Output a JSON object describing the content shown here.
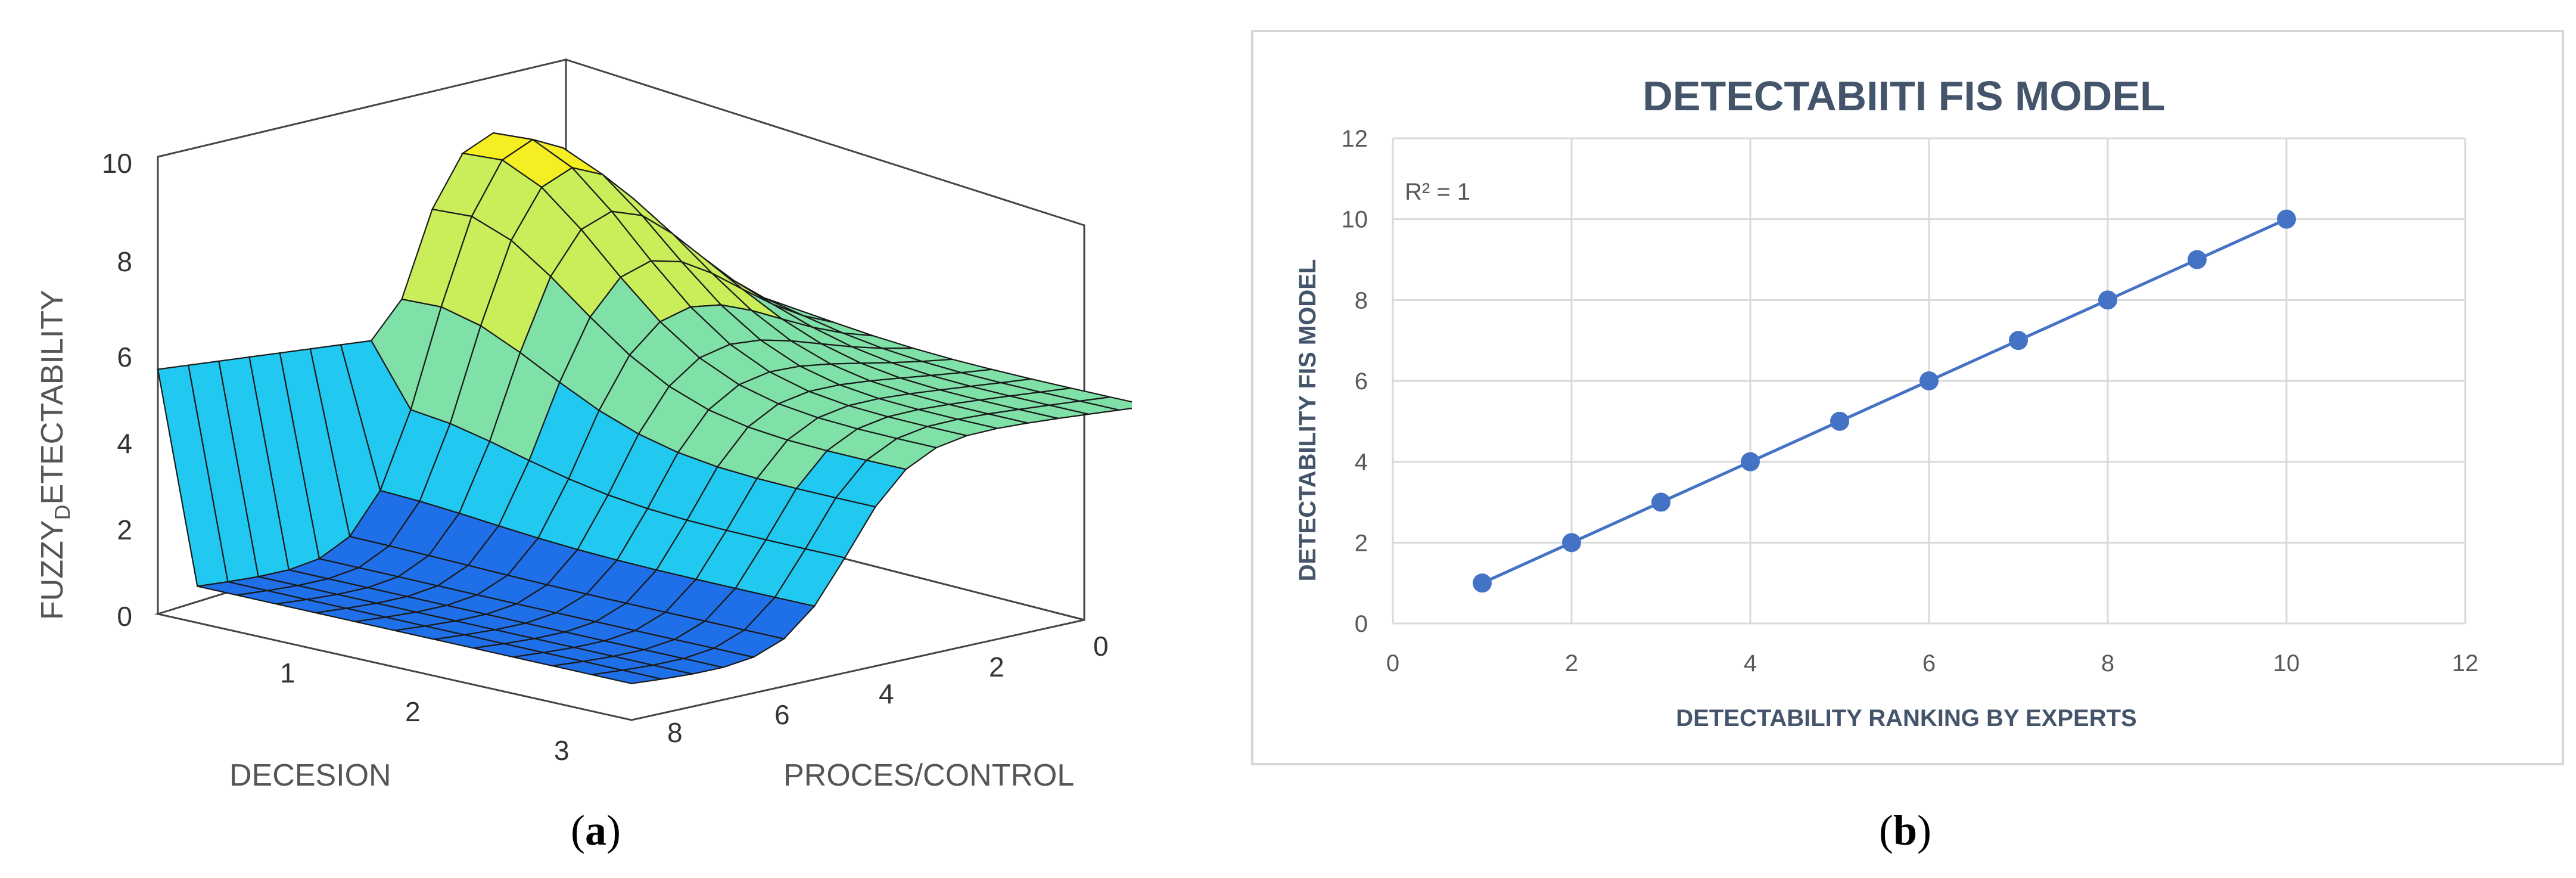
{
  "panels": {
    "a": {
      "label_prefix": "(",
      "label_letter": "a",
      "label_suffix": ")"
    },
    "b": {
      "label_prefix": "(",
      "label_letter": "b",
      "label_suffix": ")"
    }
  },
  "chart_data": [
    {
      "type": "surface",
      "title": "",
      "zlabel_main": "FUZZY",
      "zlabel_sub": "D",
      "zlabel_rest": "ETECTABILITY",
      "xlabel": "DECESION",
      "ylabel": "PROCES/CONTROL",
      "z_ticks": [
        "0",
        "2",
        "4",
        "6",
        "8",
        "10"
      ],
      "x_ticks": [
        "1",
        "2",
        "3"
      ],
      "y_ticks": [
        "8",
        "6",
        "4",
        "2",
        "0"
      ],
      "xlim": [
        0,
        3
      ],
      "ylim": [
        0,
        9
      ],
      "zlim": [
        0,
        10
      ],
      "colormap": [
        "#1f6fe8",
        "#21c9f0",
        "#7fe0a8",
        "#c9ee5a",
        "#f5ee22"
      ]
    },
    {
      "type": "scatter",
      "title": "DETECTABIITI FIS MODEL",
      "xlabel": "DETECTABILITY RANKING BY EXPERTS",
      "ylabel": "DETECTABILITY FIS MODEL",
      "annotation": "R² = 1",
      "x": [
        1,
        2,
        3,
        4,
        5,
        6,
        7,
        8,
        9,
        10
      ],
      "y": [
        1,
        2,
        3,
        4,
        5,
        6,
        7,
        8,
        9,
        10
      ],
      "xlim": [
        0,
        12
      ],
      "ylim": [
        0,
        12
      ],
      "x_ticks": [
        "0",
        "2",
        "4",
        "6",
        "8",
        "10",
        "12"
      ],
      "y_ticks": [
        "0",
        "2",
        "4",
        "6",
        "8",
        "10",
        "12"
      ],
      "trendline": "linear",
      "grid": true,
      "legend": "none",
      "color": "#4472c4"
    }
  ]
}
